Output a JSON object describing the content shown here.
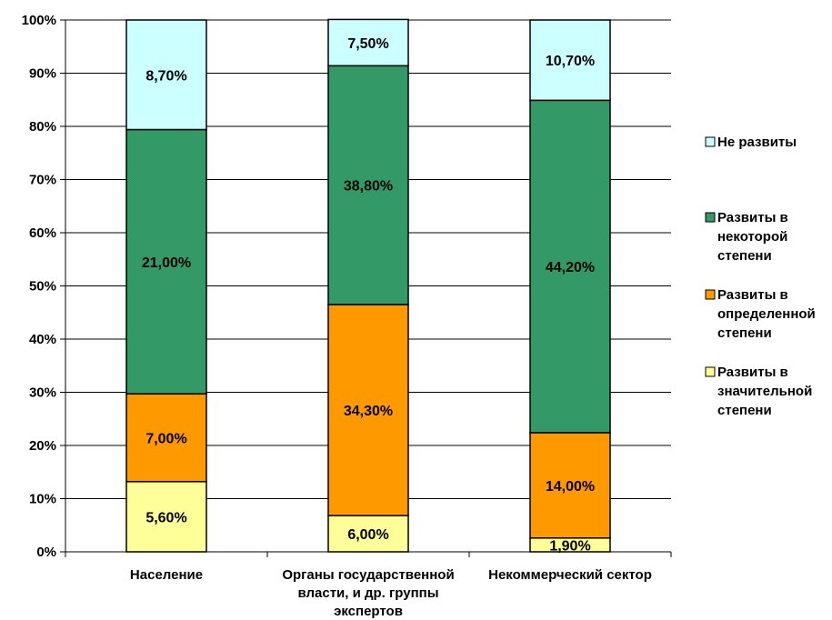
{
  "chart_data": {
    "type": "bar",
    "stacked": true,
    "title": "",
    "xlabel": "",
    "ylabel": "",
    "ylim": [
      0,
      100
    ],
    "y_ticks": [
      "0%",
      "10%",
      "20%",
      "30%",
      "40%",
      "50%",
      "60%",
      "70%",
      "80%",
      "90%",
      "100%"
    ],
    "grid": true,
    "legend_position": "right",
    "categories": [
      [
        "Население"
      ],
      [
        "Органы государственной",
        "власти, и др. группы",
        "экспертов"
      ],
      [
        "Некоммерческий сектор"
      ]
    ],
    "series": [
      {
        "name": [
          "Развиты в",
          "значительной",
          "степени"
        ],
        "color": "#ffff99",
        "values": [
          13.2,
          6.8,
          2.6
        ],
        "labels": [
          "5,60%",
          "6,00%",
          "1,90%"
        ]
      },
      {
        "name": [
          "Развиты в",
          "определенной",
          "степени"
        ],
        "color": "#ff9900",
        "values": [
          16.5,
          39.7,
          19.8
        ],
        "labels": [
          "7,00%",
          "34,30%",
          "14,00%"
        ]
      },
      {
        "name": [
          "Развиты в",
          "некоторой",
          "степени"
        ],
        "color": "#339966",
        "values": [
          49.7,
          44.9,
          62.5
        ],
        "labels": [
          "21,00%",
          "38,80%",
          "44,20%"
        ]
      },
      {
        "name": [
          "Не развиты"
        ],
        "color": "#ccffff",
        "values": [
          20.6,
          8.7,
          15.1
        ],
        "labels": [
          "8,70%",
          "7,50%",
          "10,70%"
        ]
      }
    ]
  }
}
